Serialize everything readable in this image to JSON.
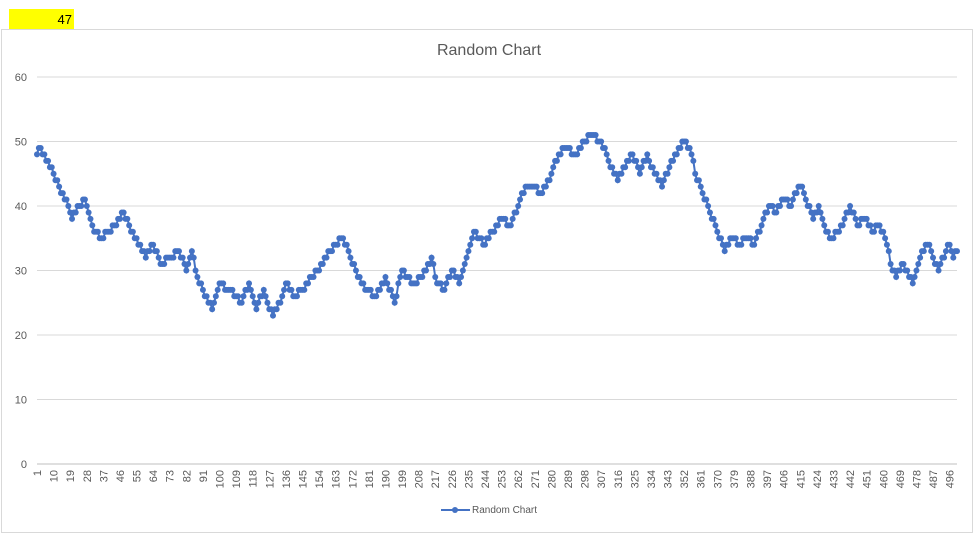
{
  "cell": {
    "value": "47"
  },
  "chart_data": {
    "type": "line",
    "title": "Random Chart",
    "xlabel": "",
    "ylabel": "",
    "ylim": [
      0,
      60
    ],
    "yticks": [
      0,
      10,
      20,
      30,
      40,
      50,
      60
    ],
    "xtick_labels": [
      "1",
      "10",
      "19",
      "28",
      "37",
      "46",
      "55",
      "64",
      "73",
      "82",
      "91",
      "100",
      "109",
      "118",
      "127",
      "136",
      "145",
      "154",
      "163",
      "172",
      "181",
      "190",
      "199",
      "208",
      "217",
      "226",
      "235",
      "244",
      "253",
      "262",
      "271",
      "280",
      "289",
      "298",
      "307",
      "316",
      "325",
      "334",
      "343",
      "352",
      "361",
      "370",
      "379",
      "388",
      "397",
      "406",
      "415",
      "424",
      "433",
      "442",
      "451",
      "460",
      "469",
      "478",
      "487",
      "496"
    ],
    "x_start": 1,
    "x_end": 500,
    "legend_position": "bottom",
    "grid": true,
    "line_color": "#4472c4",
    "series": [
      {
        "name": "Random Chart",
        "keypoints": [
          [
            1,
            48
          ],
          [
            3,
            49
          ],
          [
            6,
            47
          ],
          [
            10,
            45
          ],
          [
            14,
            42
          ],
          [
            18,
            40
          ],
          [
            20,
            38
          ],
          [
            24,
            40
          ],
          [
            27,
            41
          ],
          [
            29,
            39
          ],
          [
            32,
            36
          ],
          [
            36,
            35
          ],
          [
            40,
            36
          ],
          [
            46,
            38
          ],
          [
            48,
            39
          ],
          [
            52,
            36
          ],
          [
            56,
            34
          ],
          [
            60,
            32
          ],
          [
            64,
            34
          ],
          [
            68,
            31
          ],
          [
            74,
            32
          ],
          [
            78,
            33
          ],
          [
            82,
            30
          ],
          [
            85,
            33
          ],
          [
            88,
            29
          ],
          [
            94,
            25
          ],
          [
            96,
            24
          ],
          [
            100,
            28
          ],
          [
            105,
            27
          ],
          [
            109,
            26
          ],
          [
            112,
            25
          ],
          [
            116,
            28
          ],
          [
            120,
            24
          ],
          [
            124,
            27
          ],
          [
            126,
            25
          ],
          [
            127,
            24
          ],
          [
            129,
            23
          ],
          [
            133,
            25
          ],
          [
            136,
            28
          ],
          [
            140,
            26
          ],
          [
            145,
            27
          ],
          [
            150,
            29
          ],
          [
            154,
            30
          ],
          [
            160,
            33
          ],
          [
            164,
            34
          ],
          [
            166,
            35
          ],
          [
            170,
            33
          ],
          [
            175,
            29
          ],
          [
            180,
            27
          ],
          [
            185,
            26
          ],
          [
            190,
            29
          ],
          [
            195,
            25
          ],
          [
            199,
            30
          ],
          [
            205,
            28
          ],
          [
            210,
            29
          ],
          [
            215,
            32
          ],
          [
            218,
            28
          ],
          [
            222,
            27
          ],
          [
            226,
            30
          ],
          [
            230,
            28
          ],
          [
            233,
            31
          ],
          [
            238,
            36
          ],
          [
            244,
            34
          ],
          [
            248,
            36
          ],
          [
            253,
            38
          ],
          [
            258,
            37
          ],
          [
            262,
            40
          ],
          [
            266,
            43
          ],
          [
            270,
            43
          ],
          [
            275,
            42
          ],
          [
            280,
            45
          ],
          [
            284,
            48
          ],
          [
            288,
            49
          ],
          [
            293,
            48
          ],
          [
            298,
            50
          ],
          [
            302,
            51
          ],
          [
            306,
            50
          ],
          [
            310,
            48
          ],
          [
            312,
            46
          ],
          [
            316,
            44
          ],
          [
            320,
            46
          ],
          [
            324,
            48
          ],
          [
            328,
            45
          ],
          [
            332,
            48
          ],
          [
            334,
            46
          ],
          [
            338,
            44
          ],
          [
            340,
            43
          ],
          [
            344,
            46
          ],
          [
            348,
            48
          ],
          [
            350,
            49
          ],
          [
            352,
            50
          ],
          [
            356,
            48
          ],
          [
            358,
            45
          ],
          [
            362,
            42
          ],
          [
            366,
            39
          ],
          [
            370,
            36
          ],
          [
            374,
            33
          ],
          [
            378,
            35
          ],
          [
            382,
            34
          ],
          [
            386,
            35
          ],
          [
            390,
            34
          ],
          [
            394,
            37
          ],
          [
            398,
            40
          ],
          [
            402,
            39
          ],
          [
            406,
            41
          ],
          [
            410,
            40
          ],
          [
            414,
            43
          ],
          [
            416,
            43
          ],
          [
            418,
            41
          ],
          [
            422,
            38
          ],
          [
            425,
            40
          ],
          [
            428,
            37
          ],
          [
            431,
            35
          ],
          [
            436,
            36
          ],
          [
            442,
            40
          ],
          [
            446,
            37
          ],
          [
            450,
            38
          ],
          [
            454,
            36
          ],
          [
            458,
            37
          ],
          [
            462,
            34
          ],
          [
            465,
            30
          ],
          [
            467,
            29
          ],
          [
            470,
            31
          ],
          [
            474,
            29
          ],
          [
            476,
            28
          ],
          [
            480,
            32
          ],
          [
            484,
            34
          ],
          [
            486,
            33
          ],
          [
            488,
            31
          ],
          [
            490,
            30
          ],
          [
            494,
            33
          ],
          [
            496,
            34
          ],
          [
            498,
            32
          ],
          [
            500,
            33
          ]
        ]
      }
    ]
  }
}
